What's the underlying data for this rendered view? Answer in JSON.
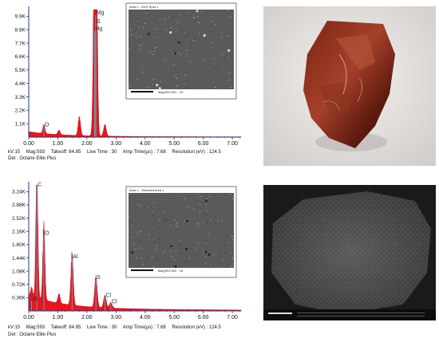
{
  "chart_data": [
    {
      "type": "line",
      "xlabel": "",
      "ylabel": "",
      "xlim": [
        0,
        7.3
      ],
      "ylim": [
        0,
        10.5
      ],
      "x_ticks": [
        "0.00",
        "1.00",
        "2.00",
        "3.00",
        "4.00",
        "5.00",
        "6.00",
        "7.00"
      ],
      "y_ticks": [
        "1.1K",
        "2.2K",
        "3.3K",
        "4.4K",
        "5.5K",
        "6.6K",
        "7.7K",
        "8.8K",
        "9.9K"
      ],
      "peaks": [
        {
          "label": "O",
          "x": 0.52,
          "y": 0.7
        },
        {
          "label": "",
          "x": 1.04,
          "y": 0.35
        },
        {
          "label": "",
          "x": 1.74,
          "y": 1.45
        },
        {
          "label": "Mg",
          "x": 2.3,
          "y": 9.9
        },
        {
          "label": "S",
          "x": 2.31,
          "y": 9.2
        },
        {
          "label": "Hg",
          "x": 2.26,
          "y": 8.6
        },
        {
          "label": "",
          "x": 2.62,
          "y": 0.9
        }
      ],
      "meta": {
        "kv": "kV:15",
        "mag": "Mag:593",
        "takeoff": "Takeoff: 84.85",
        "live": "Live Time : 30",
        "amp": "Amp Time(µs) : 7.68",
        "res": "Resolution:(eV) : 124.5",
        "det": "Det : Octane Elite Plus"
      },
      "inset": {
        "title": "Area 1 - EDS Spot 1",
        "footer": "Mag:593     WD : 16"
      }
    },
    {
      "type": "line",
      "xlabel": "",
      "ylabel": "",
      "xlim": [
        0,
        7.3
      ],
      "ylim": [
        0,
        3.5
      ],
      "x_ticks": [
        "0.00",
        "1.00",
        "2.00",
        "3.00",
        "4.00",
        "5.00",
        "6.00",
        "7.00"
      ],
      "y_ticks": [
        "0.36K",
        "0.72K",
        "1.08K",
        "1.44K",
        "1.80K",
        "2.16K",
        "2.52K",
        "2.88K",
        "3.24K"
      ],
      "peaks": [
        {
          "label": "Al",
          "x": 0.1,
          "y": 0.22
        },
        {
          "label": "C",
          "x": 0.28,
          "y": 3.4
        },
        {
          "label": "O",
          "x": 0.52,
          "y": 2.05
        },
        {
          "label": "",
          "x": 1.04,
          "y": 0.25
        },
        {
          "label": "Al",
          "x": 1.49,
          "y": 1.4
        },
        {
          "label": "S",
          "x": 2.31,
          "y": 0.82
        },
        {
          "label": "Cl",
          "x": 2.62,
          "y": 0.32
        },
        {
          "label": "Cl",
          "x": 2.82,
          "y": 0.14
        }
      ],
      "meta": {
        "kv": "kV:15",
        "mag": "Mag:593",
        "takeoff": "Takeoff: 84.85",
        "live": "Live Time : 30",
        "amp": "Amp Time(µs) : 7.68",
        "res": "Resolution:(eV) : 124.5",
        "det": "Det : Octane Elite Plus"
      },
      "inset": {
        "title": "Area 1 - Selected Area 1",
        "footer": "Mag:593     WD : 16"
      }
    }
  ],
  "colors": {
    "spectrum": "#e8151b",
    "axis": "#1b3a8a",
    "marker": "#37c6e8"
  },
  "photo": {
    "description_icon": "mineral-sample-photo-icon"
  },
  "sem": {
    "description_icon": "sem-micrograph-icon"
  }
}
